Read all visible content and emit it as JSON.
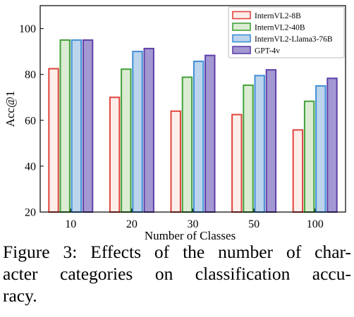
{
  "chart_data": {
    "type": "bar",
    "categories": [
      "10",
      "20",
      "30",
      "50",
      "100"
    ],
    "xlabel": "Number of Classes",
    "ylabel": "Acc@1",
    "ylim": [
      20,
      110
    ],
    "yticks": [
      "20",
      "40",
      "60",
      "80",
      "100"
    ],
    "legend_position": "top-right",
    "series": [
      {
        "name": "InternVL2-8B",
        "values": [
          82.5,
          70,
          64,
          62.5,
          55.8
        ],
        "fill": "#fdeeea",
        "stroke": "#e0443c"
      },
      {
        "name": "InternVL2-40B",
        "values": [
          95,
          82.3,
          78.8,
          75.3,
          68.3
        ],
        "fill": "#dbecd2",
        "stroke": "#42a23a"
      },
      {
        "name": "InternVL2-Llama3-76B",
        "values": [
          95,
          90,
          85.7,
          79.5,
          75
        ],
        "fill": "#bcd5ec",
        "stroke": "#3f8ed6"
      },
      {
        "name": "GPT-4v",
        "values": [
          95,
          91.3,
          88.3,
          82,
          78.3
        ],
        "fill": "#a398d2",
        "stroke": "#5f3fa8"
      }
    ]
  },
  "caption": {
    "line1": "Figure 3: Effects of the number of char-",
    "line2": "acter categories on classification accu-",
    "line3": "racy."
  }
}
